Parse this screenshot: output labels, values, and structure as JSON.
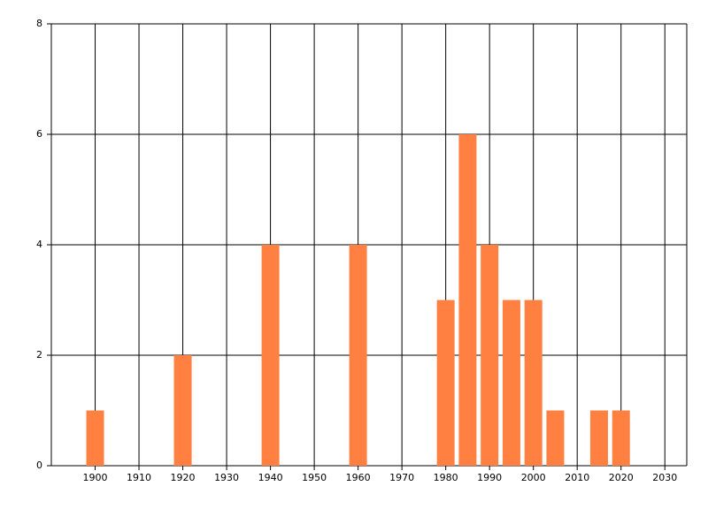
{
  "chart_data": {
    "type": "bar",
    "x": [
      1900,
      1920,
      1940,
      1960,
      1980,
      1985,
      1990,
      1995,
      2000,
      2005,
      2015,
      2020
    ],
    "values": [
      1,
      2,
      4,
      4,
      3,
      6,
      4,
      3,
      3,
      1,
      1,
      1
    ],
    "color": "#ff8040",
    "xlim": [
      1890,
      2035
    ],
    "xticks": [
      1900,
      1910,
      1920,
      1930,
      1940,
      1950,
      1960,
      1970,
      1980,
      1990,
      2000,
      2010,
      2020,
      2030
    ],
    "ylim": [
      0,
      8
    ],
    "yticks": [
      0,
      2,
      4,
      6,
      8
    ],
    "grid": true
  }
}
